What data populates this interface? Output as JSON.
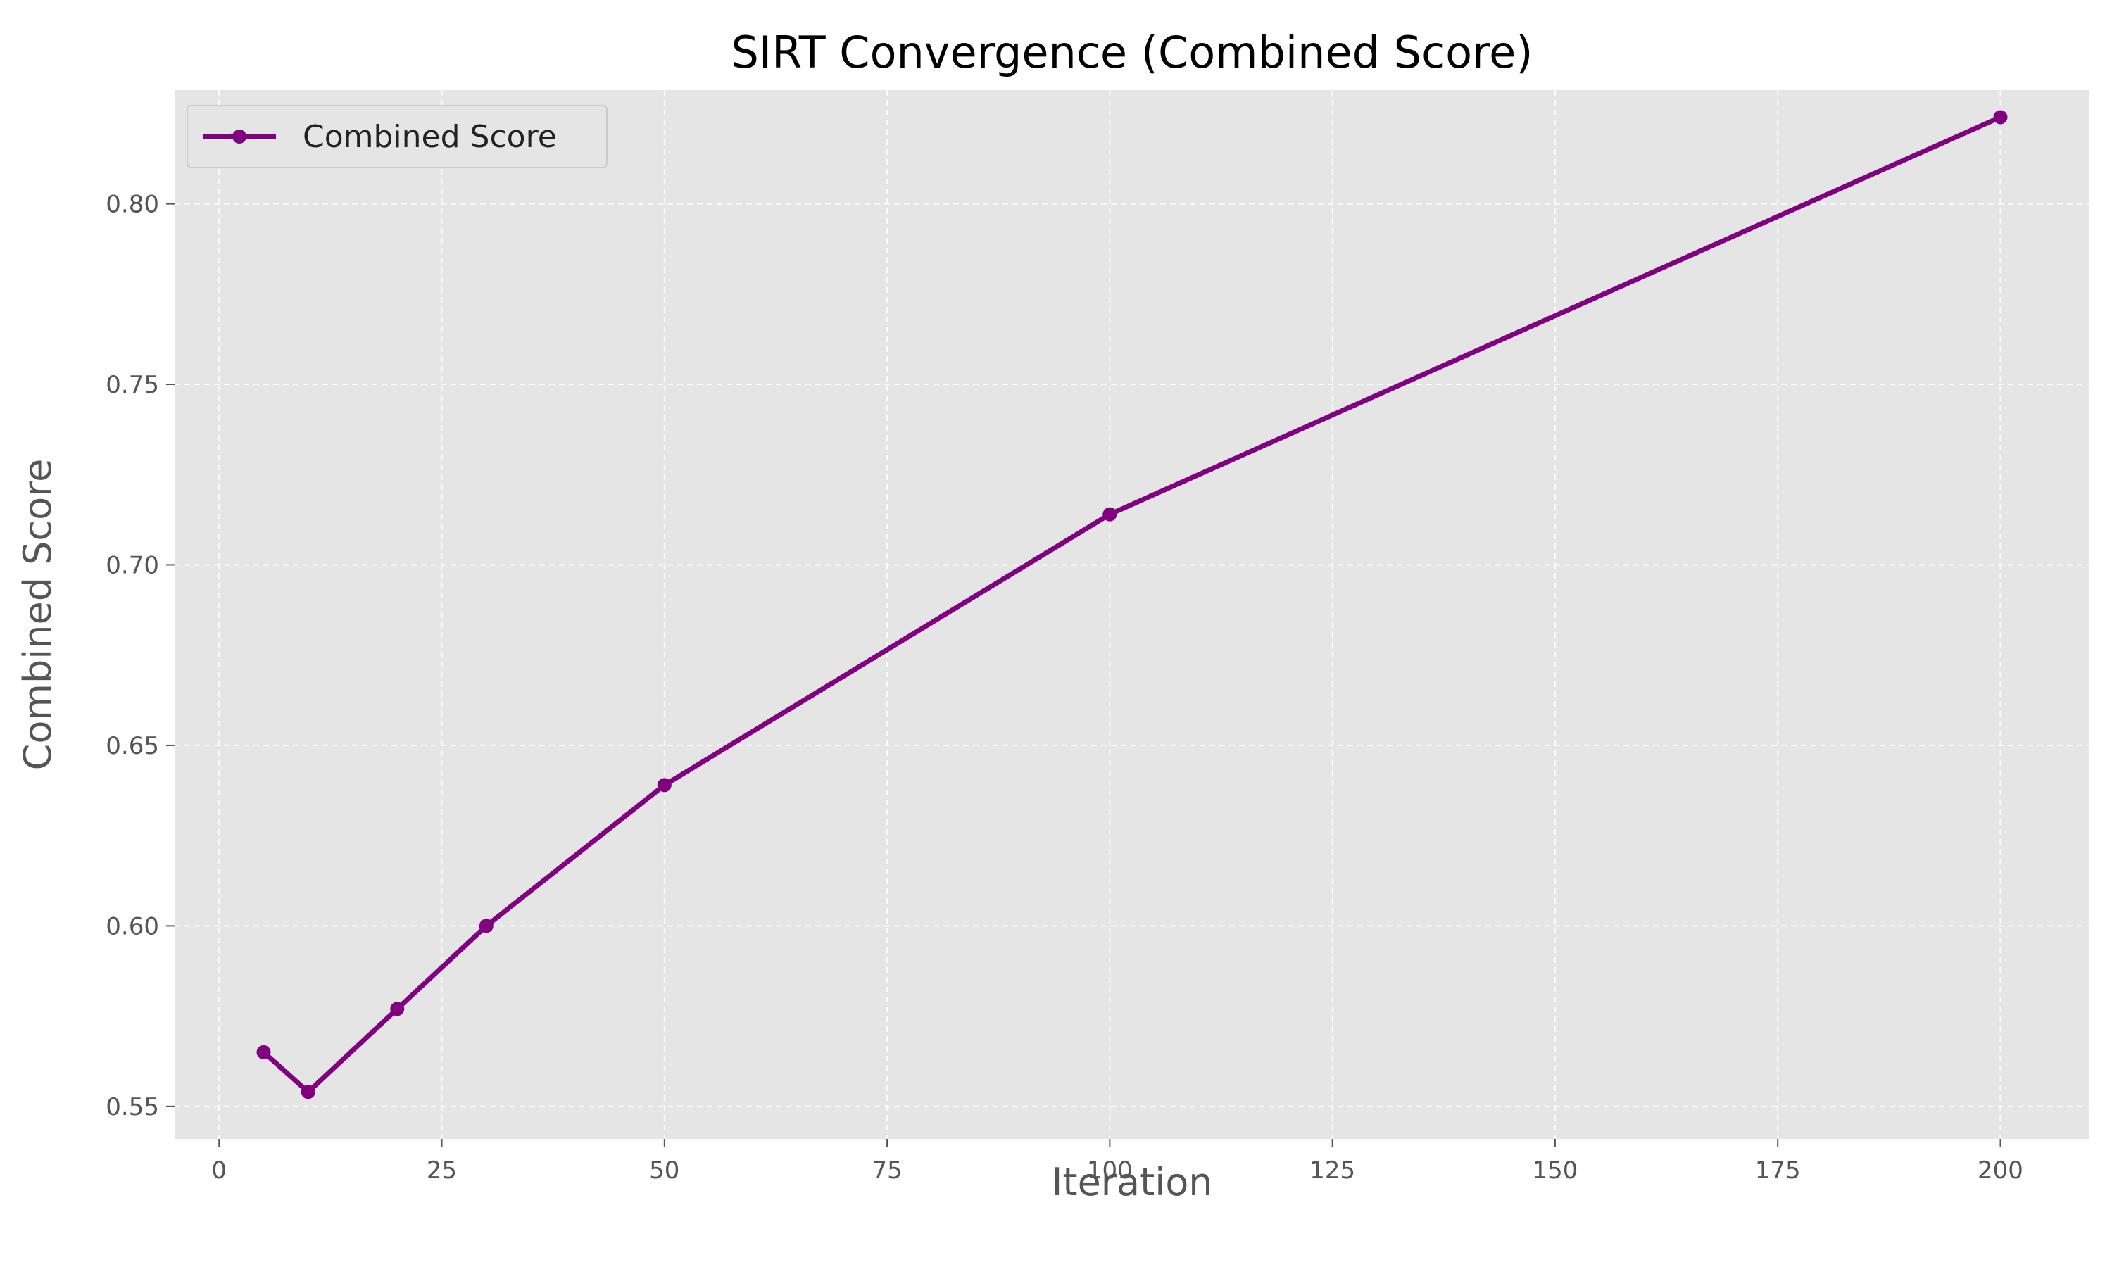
{
  "chart_data": {
    "type": "line",
    "title": "SIRT Convergence (Combined Score)",
    "xlabel": "Iteration",
    "ylabel": "Combined Score",
    "xlim": [
      -5,
      210
    ],
    "ylim": [
      0.541,
      0.8315
    ],
    "xticks": [
      0,
      25,
      50,
      75,
      100,
      125,
      150,
      175,
      200
    ],
    "yticks": [
      0.55,
      0.6,
      0.65,
      0.7,
      0.75,
      0.8
    ],
    "xtick_labels": [
      "0",
      "25",
      "50",
      "75",
      "100",
      "125",
      "150",
      "175",
      "200"
    ],
    "ytick_labels": [
      "0.55",
      "0.60",
      "0.65",
      "0.70",
      "0.75",
      "0.80"
    ],
    "grid": true,
    "legend_position": "upper-left",
    "series": [
      {
        "name": "Combined Score",
        "color": "#800080",
        "marker": "circle",
        "x": [
          5,
          10,
          20,
          30,
          50,
          100,
          200
        ],
        "y": [
          0.565,
          0.554,
          0.577,
          0.6,
          0.639,
          0.714,
          0.824
        ]
      }
    ]
  }
}
